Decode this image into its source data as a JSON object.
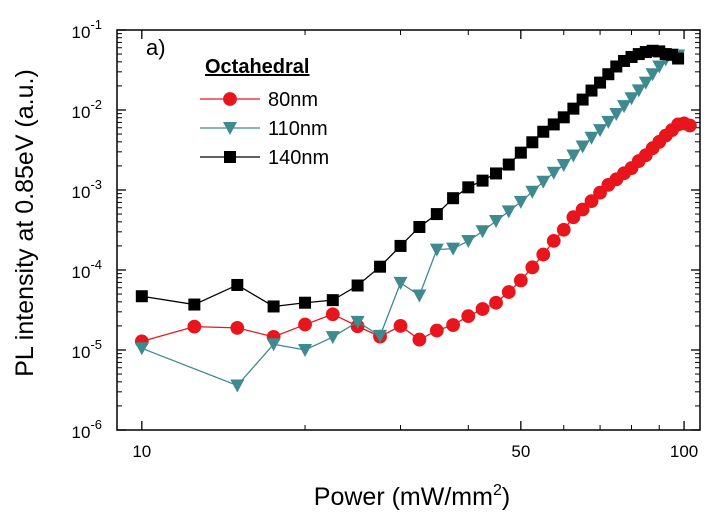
{
  "chart_data": {
    "type": "scatter",
    "panel_label": "a)",
    "xlabel": "Power (mW/mm",
    "xlabel_sup": "2",
    "xlabel_end": ")",
    "ylabel": "PL intensity at 0.85eV (a.u.)",
    "xscale": "log",
    "yscale": "log",
    "xlim": [
      9,
      107
    ],
    "ylim": [
      1e-06,
      0.1
    ],
    "xticks": [
      {
        "value": 10,
        "label": "10"
      },
      {
        "value": 50,
        "label": "50"
      },
      {
        "value": 100,
        "label": "100"
      }
    ],
    "yticks": [
      {
        "value": 1e-06,
        "base": "10",
        "exp": "-6"
      },
      {
        "value": 1e-05,
        "base": "10",
        "exp": "-5"
      },
      {
        "value": 0.0001,
        "base": "10",
        "exp": "-4"
      },
      {
        "value": 0.001,
        "base": "10",
        "exp": "-3"
      },
      {
        "value": 0.01,
        "base": "10",
        "exp": "-2"
      },
      {
        "value": 0.1,
        "base": "10",
        "exp": "-1"
      }
    ],
    "legend": {
      "title": "Octahedral",
      "position": "top-left"
    },
    "series": [
      {
        "name": "80nm",
        "color": "#e8161c",
        "marker": "circle",
        "points": [
          [
            10,
            1.28e-05
          ],
          [
            12.5,
            1.96e-05
          ],
          [
            15,
            1.89e-05
          ],
          [
            17.5,
            1.46e-05
          ],
          [
            20,
            2.08e-05
          ],
          [
            22.5,
            2.8e-05
          ],
          [
            25,
            1.98e-05
          ],
          [
            27.5,
            1.47e-05
          ],
          [
            30,
            2e-05
          ],
          [
            32.5,
            1.35e-05
          ],
          [
            35,
            1.75e-05
          ],
          [
            37.5,
            2.05e-05
          ],
          [
            40,
            2.65e-05
          ],
          [
            42.5,
            3.25e-05
          ],
          [
            45,
            3.9e-05
          ],
          [
            47.5,
            5.3e-05
          ],
          [
            50,
            7.4e-05
          ],
          [
            52.5,
            0.000108
          ],
          [
            55,
            0.000156
          ],
          [
            57.5,
            0.000231
          ],
          [
            60,
            0.000318
          ],
          [
            62.5,
            0.000457
          ],
          [
            65,
            0.000571
          ],
          [
            67.5,
            0.000725
          ],
          [
            70,
            0.000926
          ],
          [
            72.5,
            0.00116
          ],
          [
            75,
            0.00136
          ],
          [
            77.5,
            0.00162
          ],
          [
            80,
            0.00188
          ],
          [
            82.5,
            0.0023
          ],
          [
            85,
            0.00272
          ],
          [
            87.5,
            0.00333
          ],
          [
            90,
            0.004
          ],
          [
            92.5,
            0.00478
          ],
          [
            95,
            0.0056
          ],
          [
            97.5,
            0.0066
          ],
          [
            100,
            0.0068
          ],
          [
            102.5,
            0.0064
          ]
        ]
      },
      {
        "name": "110nm",
        "color": "#3f8a8e",
        "marker": "triangle-down",
        "points": [
          [
            10,
            1.05e-05
          ],
          [
            15,
            3.6e-06
          ],
          [
            17.5,
            1.18e-05
          ],
          [
            20,
            1e-05
          ],
          [
            22.5,
            1.45e-05
          ],
          [
            25,
            2.25e-05
          ],
          [
            27.5,
            1.5e-05
          ],
          [
            30,
            6.9e-05
          ],
          [
            32.5,
            4.8e-05
          ],
          [
            35,
            0.00018
          ],
          [
            37.5,
            0.000185
          ],
          [
            40,
            0.00023
          ],
          [
            42.5,
            0.000305
          ],
          [
            45,
            0.00041
          ],
          [
            47.5,
            0.00054
          ],
          [
            50,
            0.00071
          ],
          [
            52.5,
            0.00095
          ],
          [
            55,
            0.00127
          ],
          [
            57.5,
            0.00164
          ],
          [
            60,
            0.00205
          ],
          [
            62.5,
            0.0027
          ],
          [
            65,
            0.0035
          ],
          [
            67.5,
            0.0045
          ],
          [
            70,
            0.0056
          ],
          [
            72.5,
            0.0071
          ],
          [
            75,
            0.0089
          ],
          [
            77.5,
            0.0112
          ],
          [
            80,
            0.014
          ],
          [
            82.5,
            0.0176
          ],
          [
            85,
            0.022
          ],
          [
            87.5,
            0.028
          ],
          [
            90,
            0.035
          ],
          [
            92.5,
            0.043
          ],
          [
            95,
            0.049
          ],
          [
            97.5,
            0.048
          ]
        ]
      },
      {
        "name": "140nm",
        "color": "#000000",
        "marker": "square",
        "points": [
          [
            10,
            4.7e-05
          ],
          [
            12.5,
            3.7e-05
          ],
          [
            15,
            6.5e-05
          ],
          [
            17.5,
            3.5e-05
          ],
          [
            20,
            3.9e-05
          ],
          [
            22.5,
            4.2e-05
          ],
          [
            25,
            6.4e-05
          ],
          [
            27.5,
            0.00011
          ],
          [
            30,
            0.0002
          ],
          [
            32.5,
            0.000345
          ],
          [
            35,
            0.0005
          ],
          [
            37.5,
            0.00079
          ],
          [
            40,
            0.00108
          ],
          [
            42.5,
            0.00131
          ],
          [
            45,
            0.00161
          ],
          [
            47.5,
            0.00208
          ],
          [
            50,
            0.00293
          ],
          [
            52.5,
            0.00395
          ],
          [
            55,
            0.00535
          ],
          [
            57.5,
            0.0066
          ],
          [
            60,
            0.0081
          ],
          [
            62.5,
            0.0104
          ],
          [
            65,
            0.0135
          ],
          [
            67.5,
            0.0175
          ],
          [
            70,
            0.022
          ],
          [
            72.5,
            0.028
          ],
          [
            75,
            0.035
          ],
          [
            77.5,
            0.041
          ],
          [
            80,
            0.046
          ],
          [
            82.5,
            0.05
          ],
          [
            85,
            0.053
          ],
          [
            87.5,
            0.055
          ],
          [
            90,
            0.054
          ],
          [
            92.5,
            0.05
          ],
          [
            95,
            0.049
          ],
          [
            97.5,
            0.044
          ]
        ]
      }
    ]
  }
}
